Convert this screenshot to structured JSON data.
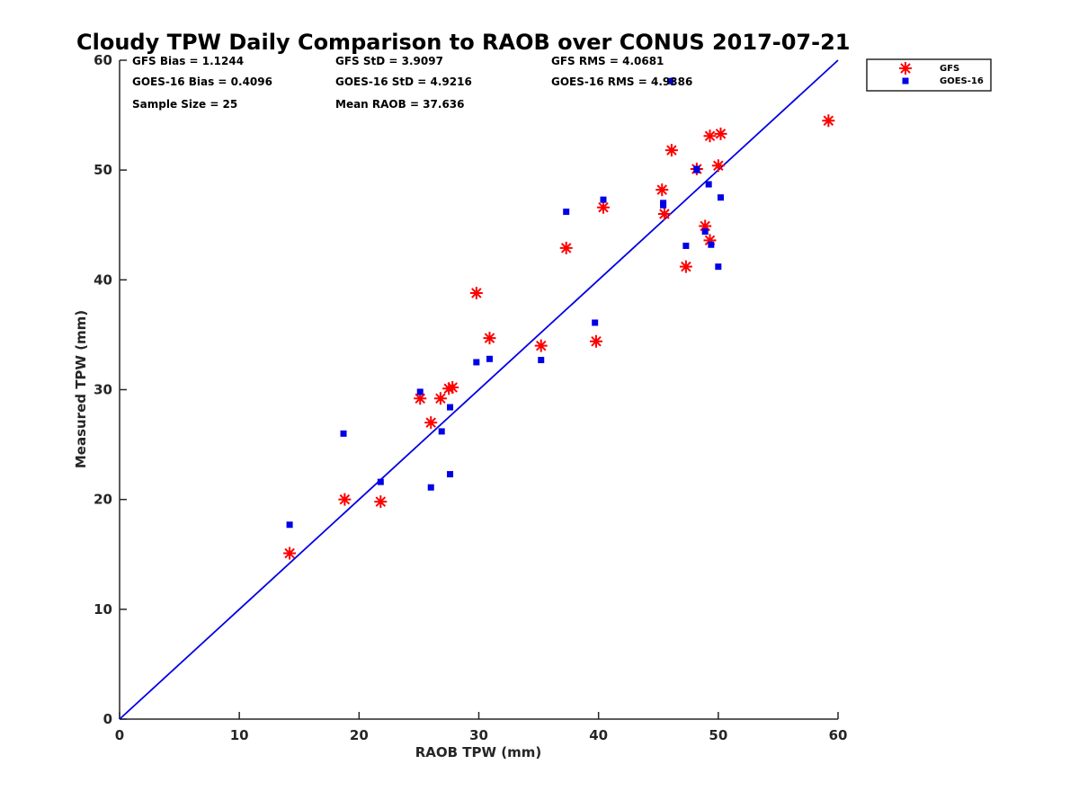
{
  "chart_data": {
    "type": "scatter",
    "title": "Cloudy TPW Daily Comparison to RAOB over CONUS 2017-07-21",
    "xlabel": "RAOB TPW (mm)",
    "ylabel": "Measured TPW (mm)",
    "xlim": [
      0,
      60
    ],
    "ylim": [
      0,
      60
    ],
    "xticks": [
      0,
      10,
      20,
      30,
      40,
      50,
      60
    ],
    "yticks": [
      0,
      10,
      20,
      30,
      40,
      50,
      60
    ],
    "grid": false,
    "legend_position": "outside-top-right",
    "reference_line": {
      "from": [
        0,
        0
      ],
      "to": [
        60,
        60
      ],
      "color": "#0000e6"
    },
    "stats": [
      [
        "GFS Bias = 1.1244",
        "GFS StD = 3.9097",
        "GFS RMS = 4.0681"
      ],
      [
        "GOES-16 Bias = 0.4096",
        "GOES-16 StD = 4.9216",
        "GOES-16 RMS = 4.9386"
      ],
      [
        "Sample Size = 25",
        "Mean RAOB = 37.636",
        ""
      ]
    ],
    "series": [
      {
        "name": "GFS",
        "marker": "asterisk",
        "color": "#ff0000",
        "points": [
          [
            14.2,
            15.1
          ],
          [
            18.8,
            20.0
          ],
          [
            21.8,
            19.8
          ],
          [
            25.1,
            29.2
          ],
          [
            26.0,
            27.0
          ],
          [
            26.8,
            29.2
          ],
          [
            27.5,
            30.1
          ],
          [
            27.8,
            30.2
          ],
          [
            29.8,
            38.8
          ],
          [
            30.9,
            34.7
          ],
          [
            35.2,
            34.0
          ],
          [
            37.3,
            42.9
          ],
          [
            39.8,
            34.4
          ],
          [
            40.4,
            46.6
          ],
          [
            45.3,
            48.2
          ],
          [
            45.5,
            46.0
          ],
          [
            46.1,
            51.8
          ],
          [
            47.3,
            41.2
          ],
          [
            48.2,
            50.1
          ],
          [
            48.9,
            44.9
          ],
          [
            49.3,
            43.6
          ],
          [
            49.3,
            53.1
          ],
          [
            50.0,
            50.4
          ],
          [
            50.2,
            53.3
          ],
          [
            59.2,
            54.5
          ]
        ]
      },
      {
        "name": "GOES-16",
        "marker": "square",
        "color": "#0000e6",
        "points": [
          [
            14.2,
            17.7
          ],
          [
            18.7,
            26.0
          ],
          [
            21.8,
            21.6
          ],
          [
            25.1,
            29.8
          ],
          [
            26.0,
            21.1
          ],
          [
            26.9,
            26.2
          ],
          [
            27.6,
            28.4
          ],
          [
            27.6,
            22.3
          ],
          [
            29.8,
            32.5
          ],
          [
            30.9,
            32.8
          ],
          [
            35.2,
            32.7
          ],
          [
            37.3,
            46.2
          ],
          [
            39.7,
            36.1
          ],
          [
            40.4,
            47.3
          ],
          [
            45.4,
            46.8
          ],
          [
            45.4,
            47.0
          ],
          [
            46.0,
            58.1
          ],
          [
            47.3,
            43.1
          ],
          [
            48.2,
            50.1
          ],
          [
            48.9,
            44.4
          ],
          [
            49.2,
            48.7
          ],
          [
            49.4,
            43.2
          ],
          [
            50.0,
            41.2
          ],
          [
            50.2,
            47.5
          ],
          [
            48.2,
            50.0
          ]
        ]
      }
    ]
  }
}
